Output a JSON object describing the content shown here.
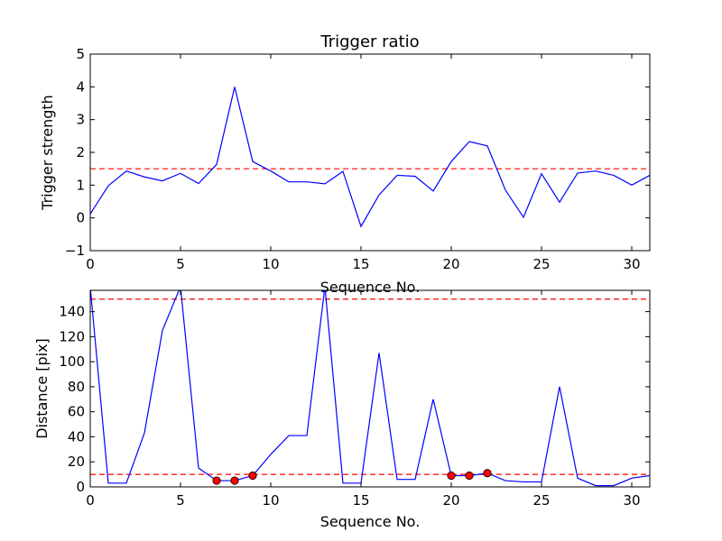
{
  "chart_data": [
    {
      "type": "line",
      "title": "Trigger ratio",
      "xlabel": "Sequence No.",
      "ylabel": "Trigger strength",
      "xlim": [
        0,
        31
      ],
      "ylim": [
        -1,
        5
      ],
      "xticks": [
        0,
        5,
        10,
        15,
        20,
        25,
        30
      ],
      "yticks": [
        -1,
        0,
        1,
        2,
        3,
        4,
        5
      ],
      "x": [
        0,
        1,
        2,
        3,
        4,
        5,
        6,
        7,
        8,
        9,
        10,
        11,
        12,
        13,
        14,
        15,
        16,
        17,
        18,
        19,
        20,
        21,
        22,
        23,
        24,
        25,
        26,
        27,
        28,
        29,
        30,
        31
      ],
      "series": [
        {
          "color": "#0000ff",
          "values": [
            0.12,
            0.98,
            1.43,
            1.25,
            1.13,
            1.36,
            1.05,
            1.63,
            4.0,
            1.72,
            1.43,
            1.1,
            1.1,
            1.04,
            1.42,
            -0.26,
            0.7,
            1.3,
            1.27,
            0.82,
            1.72,
            2.33,
            2.2,
            0.85,
            0.02,
            1.35,
            0.48,
            1.37,
            1.43,
            1.3,
            1.0,
            1.3
          ]
        }
      ],
      "threshold_lines": [
        {
          "y": 1.5,
          "color": "#ff0000",
          "style": "dashed"
        }
      ],
      "grid": false
    },
    {
      "type": "line",
      "title": "",
      "xlabel": "Sequence No.",
      "ylabel": "Distance [pix]",
      "xlim": [
        0,
        31
      ],
      "ylim": [
        0,
        157
      ],
      "xticks": [
        0,
        5,
        10,
        15,
        20,
        25,
        30
      ],
      "yticks": [
        0,
        20,
        40,
        60,
        80,
        100,
        120,
        140
      ],
      "x": [
        0,
        1,
        2,
        3,
        4,
        5,
        6,
        7,
        8,
        9,
        10,
        11,
        12,
        13,
        14,
        15,
        16,
        17,
        18,
        19,
        20,
        21,
        22,
        23,
        24,
        25,
        26,
        27,
        28,
        29,
        30,
        31
      ],
      "series": [
        {
          "color": "#0000ff",
          "values": [
            160,
            3,
            3,
            43,
            125,
            160,
            15,
            5,
            5,
            9,
            26,
            41,
            41,
            160,
            3,
            3,
            107,
            6,
            6,
            70,
            9,
            9,
            11,
            5,
            4,
            4,
            80,
            7,
            1,
            1,
            7,
            9
          ]
        }
      ],
      "markers": {
        "color": "#ff0000",
        "edge": "#000000",
        "points": [
          {
            "x": 7,
            "y": 5
          },
          {
            "x": 8,
            "y": 5
          },
          {
            "x": 9,
            "y": 9
          },
          {
            "x": 20,
            "y": 9
          },
          {
            "x": 21,
            "y": 9
          },
          {
            "x": 22,
            "y": 11
          }
        ]
      },
      "threshold_lines": [
        {
          "y": 150,
          "color": "#ff0000",
          "style": "dashed"
        },
        {
          "y": 10,
          "color": "#ff0000",
          "style": "dashed"
        }
      ],
      "grid": false
    }
  ]
}
